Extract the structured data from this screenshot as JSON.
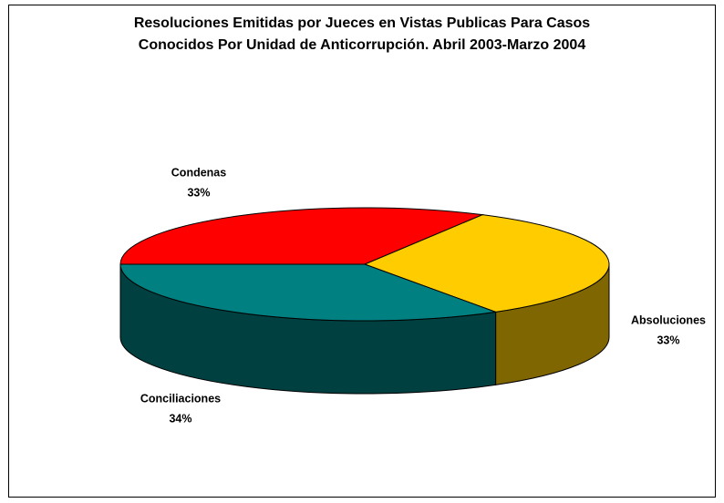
{
  "chart_data": {
    "type": "pie3d",
    "title": "Resoluciones Emitidas por Jueces en Vistas Publicas Para Casos Conocidos Por Unidad de Anticorrupción. Abril 2003-Marzo 2004",
    "categories": [
      "Condenas",
      "Absoluciones",
      "Conciliaciones"
    ],
    "values": [
      33,
      33,
      34
    ],
    "value_labels": [
      "33%",
      "33%",
      "34%"
    ],
    "colors": [
      "#ff0000",
      "#ffcc00",
      "#008080"
    ]
  }
}
